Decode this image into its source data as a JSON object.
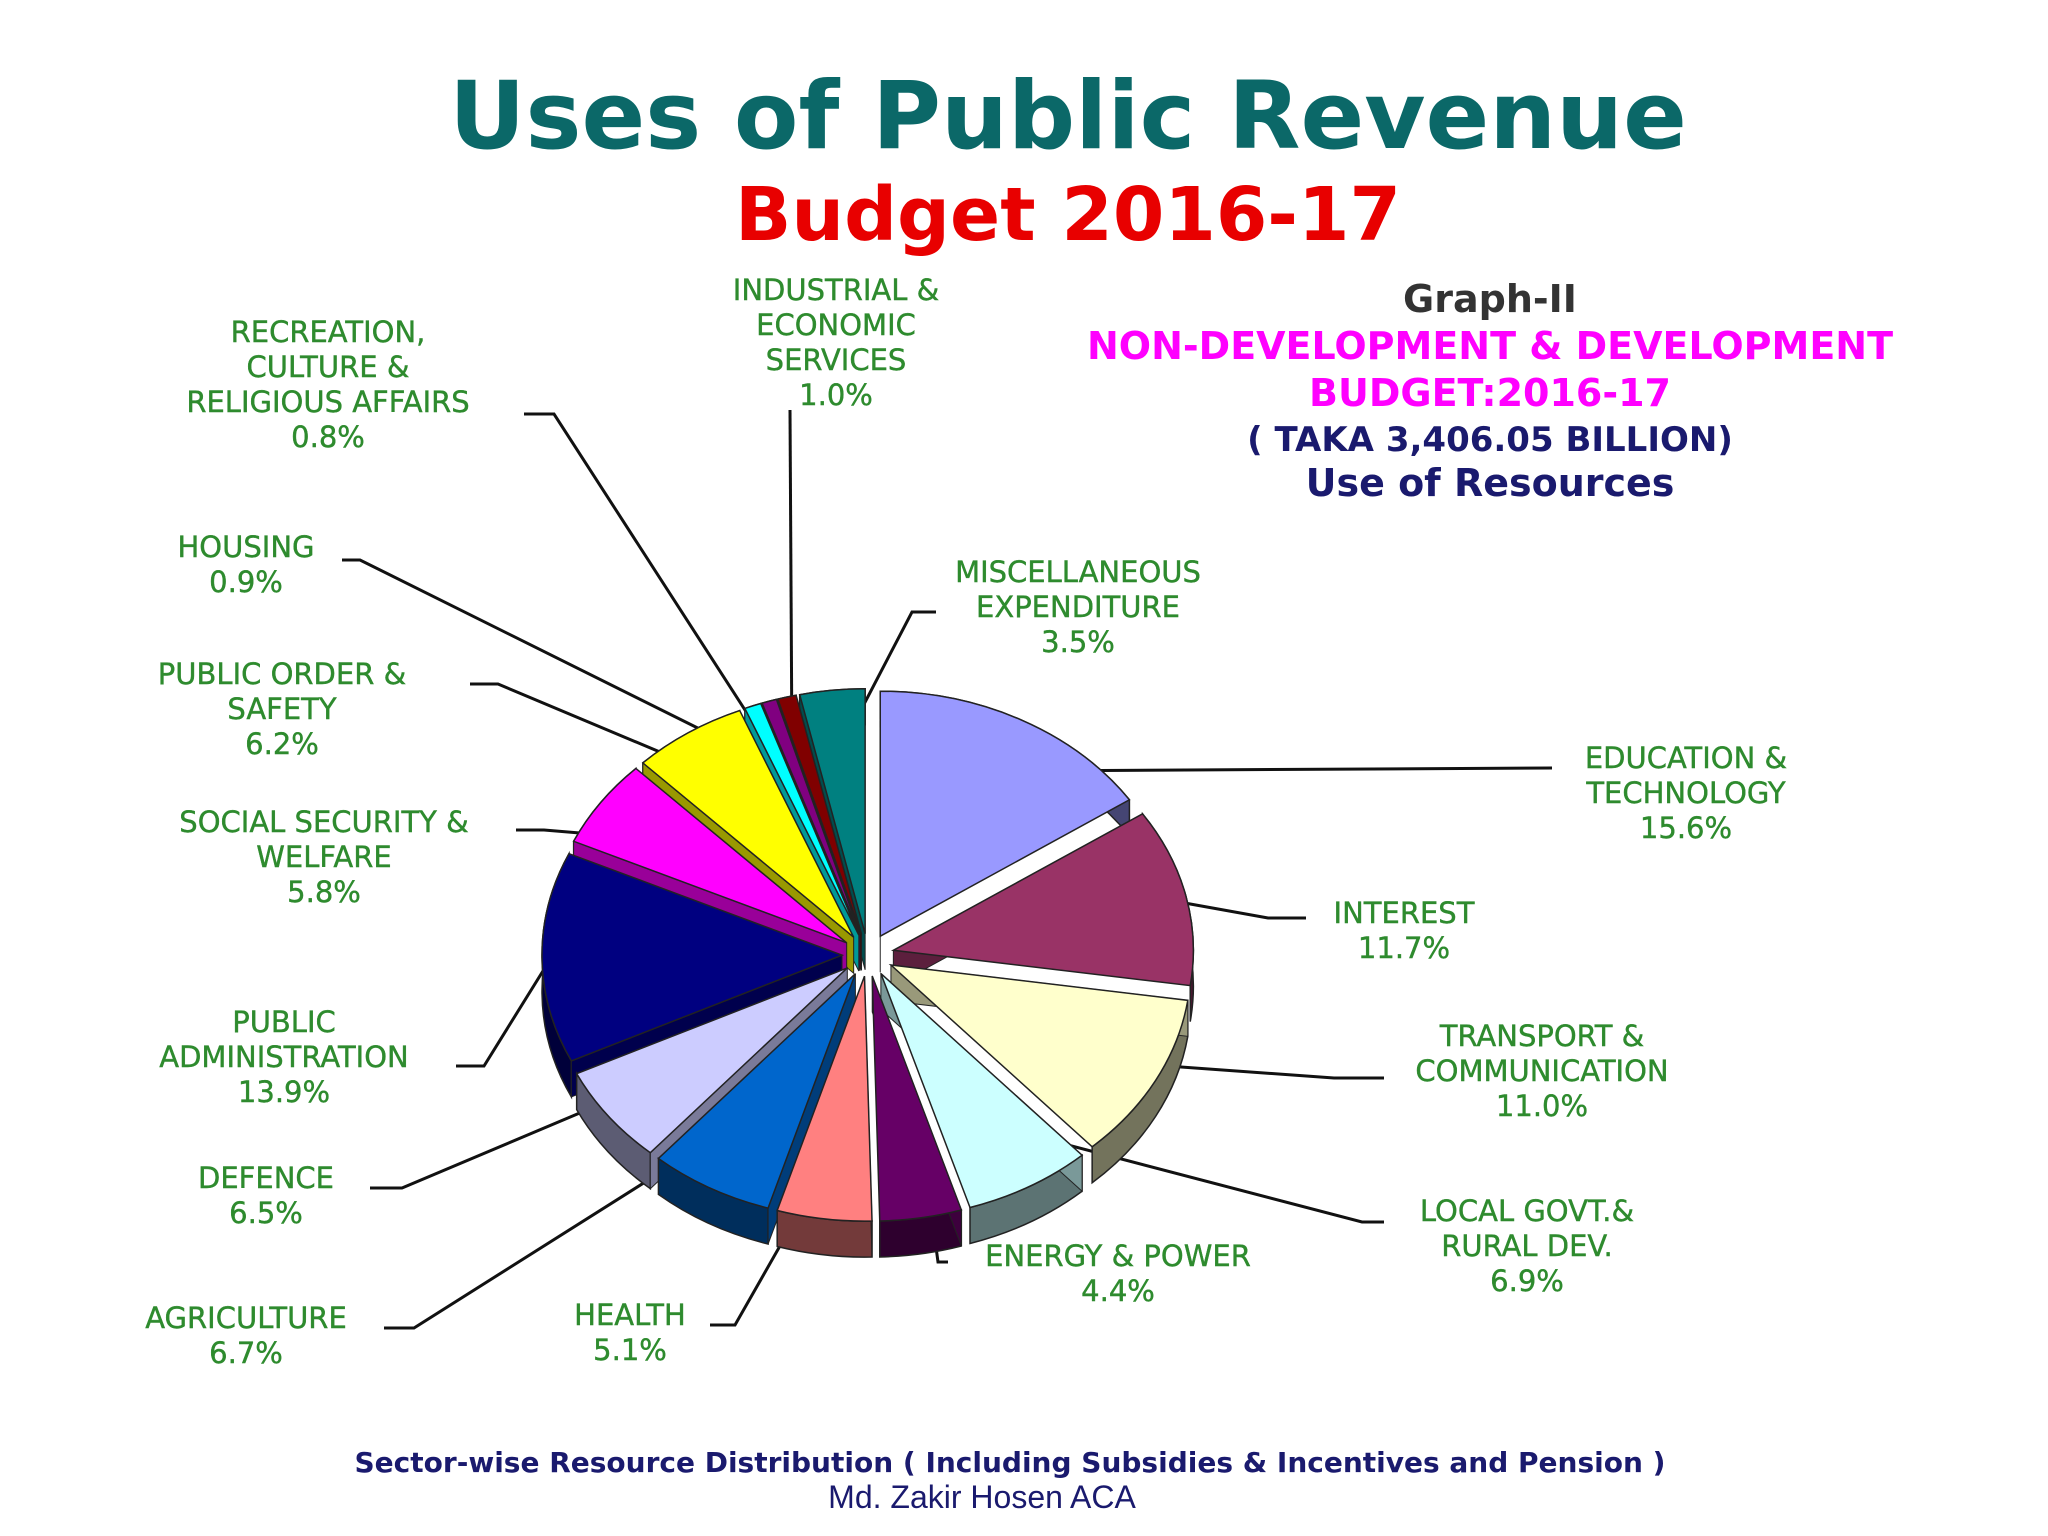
{
  "slide": {
    "title": "Uses of Public Revenue",
    "subtitle": "Budget 2016-17",
    "footer": "Sector-wise Resource Distribution ( Including Subsidies &  Incentives and Pension )",
    "author": "Md. Zakir Hosen ACA"
  },
  "graph": {
    "label": "Graph-II",
    "heading_line1": "NON-DEVELOPMENT & DEVELOPMENT",
    "heading_line2": "BUDGET:2016-17",
    "amount": "( TAKA 3,406.05 BILLION)",
    "subheading": "Use of Resources"
  },
  "colors": {
    "title": "#0b6868",
    "subtitle": "#e80000",
    "magenta": "#ff00ff",
    "navy": "#1a1a6e",
    "label_green": "#2e8b2e"
  },
  "chart_data": {
    "type": "pie",
    "unit": "%",
    "slices": [
      {
        "label_lines": [
          "EDUCATION  &",
          "TECHNOLOGY"
        ],
        "value": 15.6,
        "display": "15.6%",
        "color": "#9999ff"
      },
      {
        "label_lines": [
          "INTEREST"
        ],
        "value": 11.7,
        "display": "11.7%",
        "color": "#993366"
      },
      {
        "label_lines": [
          "TRANSPORT &",
          "COMMUNICATION"
        ],
        "value": 11.0,
        "display": "11.0%",
        "color": "#ffffcc"
      },
      {
        "label_lines": [
          "LOCAL GOVT.&",
          "RURAL DEV."
        ],
        "value": 6.9,
        "display": "6.9%",
        "color": "#ccffff"
      },
      {
        "label_lines": [
          "ENERGY & POWER"
        ],
        "value": 4.4,
        "display": "4.4%",
        "color": "#660066"
      },
      {
        "label_lines": [
          "HEALTH"
        ],
        "value": 5.1,
        "display": "5.1%",
        "color": "#ff8080"
      },
      {
        "label_lines": [
          "AGRICULTURE"
        ],
        "value": 6.7,
        "display": "6.7%",
        "color": "#0066cc"
      },
      {
        "label_lines": [
          "DEFENCE"
        ],
        "value": 6.5,
        "display": "6.5%",
        "color": "#ccccff"
      },
      {
        "label_lines": [
          "PUBLIC",
          "ADMINISTRATION"
        ],
        "value": 13.9,
        "display": "13.9%",
        "color": "#000080"
      },
      {
        "label_lines": [
          "SOCIAL SECURITY &",
          "WELFARE"
        ],
        "value": 5.8,
        "display": "5.8%",
        "color": "#ff00ff"
      },
      {
        "label_lines": [
          "PUBLIC ORDER &",
          "SAFETY"
        ],
        "value": 6.2,
        "display": "6.2%",
        "color": "#ffff00"
      },
      {
        "label_lines": [
          "HOUSING"
        ],
        "value": 0.9,
        "display": "0.9%",
        "color": "#00ffff"
      },
      {
        "label_lines": [
          "RECREATION,",
          "CULTURE &",
          "RELIGIOUS AFFAIRS"
        ],
        "value": 0.8,
        "display": "0.8%",
        "color": "#800080"
      },
      {
        "label_lines": [
          "INDUSTRIAL &",
          "ECONOMIC",
          "SERVICES"
        ],
        "value": 1.0,
        "display": "1.0%",
        "color": "#800000"
      },
      {
        "label_lines": [
          "MISCELLANEOUS",
          "EXPENDITURE"
        ],
        "value": 3.5,
        "display": "3.5%",
        "color": "#008080"
      }
    ]
  }
}
